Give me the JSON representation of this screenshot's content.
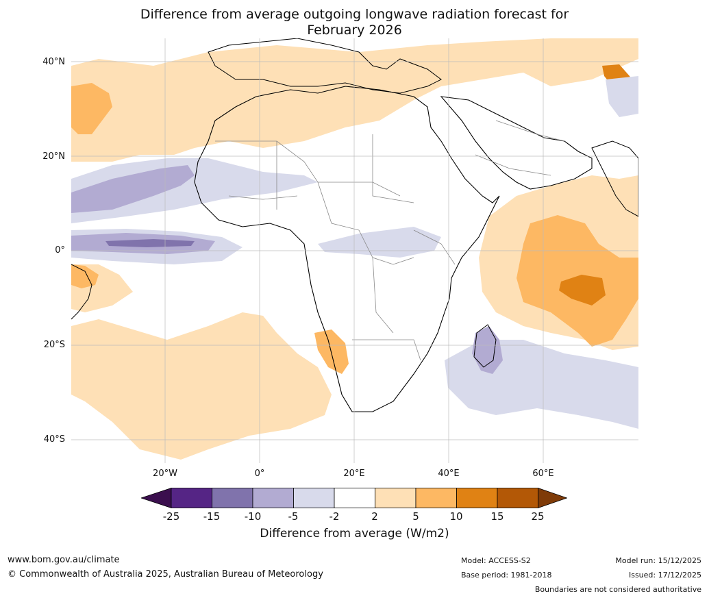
{
  "title_line1": "Difference from average outgoing longwave radiation forecast for",
  "title_line2": "February 2026",
  "lat_labels": [
    "40°N",
    "20°N",
    "0°",
    "20°S",
    "40°S"
  ],
  "lon_labels": [
    "20°W",
    "0°",
    "20°E",
    "40°E",
    "60°E"
  ],
  "colorbar": {
    "ticks": [
      "-25",
      "-15",
      "-10",
      "-5",
      "-2",
      "2",
      "5",
      "10",
      "15",
      "25"
    ],
    "colors": [
      "#3b0f4e",
      "#552585",
      "#8073ac",
      "#b2abd2",
      "#d8daeb",
      "#ffffff",
      "#fee0b6",
      "#fdb863",
      "#e08214",
      "#b35806",
      "#7f3b08"
    ],
    "label": "Difference from average (W/m2)"
  },
  "footer": {
    "url": "www.bom.gov.au/climate",
    "copyright": "© Commonwealth of Australia 2025, Australian Bureau of Meteorology",
    "model": "Model: ACCESS-S2",
    "base_period": "Base period: 1981-2018",
    "model_run": "Model run: 15/12/2025",
    "issued": "Issued: 17/12/2025",
    "disclaimer": "Boundaries are not considered authoritative"
  }
}
